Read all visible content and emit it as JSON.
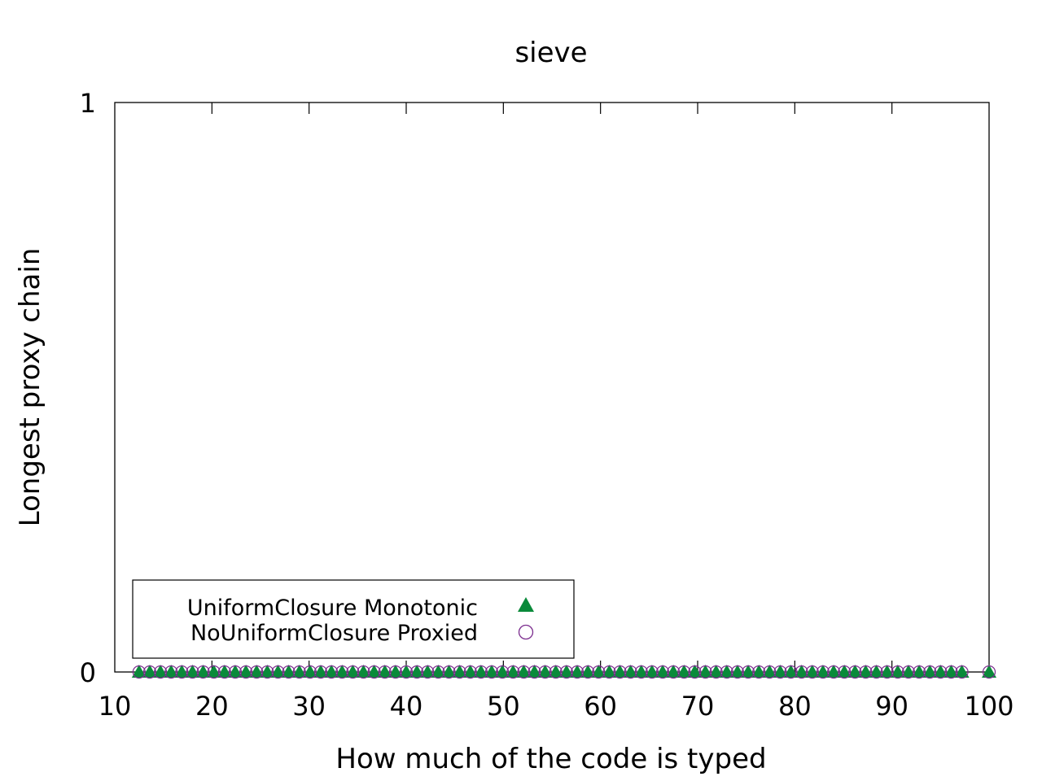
{
  "chart_data": {
    "type": "scatter",
    "title": "sieve",
    "xlabel": "How much of the code is typed",
    "ylabel": "Longest proxy chain",
    "xlim": [
      10,
      100
    ],
    "ylim": [
      0,
      1
    ],
    "x_ticks": [
      "10",
      "20",
      "30",
      "40",
      "50",
      "60",
      "70",
      "80",
      "90",
      "100"
    ],
    "y_ticks": [
      "0",
      "1"
    ],
    "grid": false,
    "legend_position": "bottom-left",
    "series": [
      {
        "name": "UniformClosure Monotonic",
        "marker": "filled-triangle",
        "color": "#0a8a3a",
        "x": [
          12.5,
          13.6,
          14.7,
          15.8,
          16.9,
          18.0,
          19.1,
          20.2,
          21.3,
          22.4,
          23.5,
          24.6,
          25.7,
          26.8,
          27.9,
          29.0,
          30.1,
          31.2,
          32.3,
          33.4,
          34.5,
          35.6,
          36.7,
          37.8,
          38.9,
          40.0,
          41.1,
          42.2,
          43.3,
          44.4,
          45.5,
          46.6,
          47.7,
          48.8,
          49.9,
          51.0,
          52.1,
          53.2,
          54.3,
          55.4,
          56.5,
          57.6,
          58.7,
          59.8,
          60.9,
          62.0,
          63.1,
          64.2,
          65.3,
          66.4,
          67.5,
          68.6,
          69.7,
          70.8,
          71.9,
          73.0,
          74.1,
          75.2,
          76.3,
          77.4,
          78.5,
          79.6,
          80.7,
          81.8,
          82.9,
          84.0,
          85.1,
          86.2,
          87.3,
          88.4,
          89.5,
          90.6,
          91.7,
          92.8,
          93.9,
          95.0,
          96.1,
          97.2,
          100.0
        ],
        "y": [
          0,
          0,
          0,
          0,
          0,
          0,
          0,
          0,
          0,
          0,
          0,
          0,
          0,
          0,
          0,
          0,
          0,
          0,
          0,
          0,
          0,
          0,
          0,
          0,
          0,
          0,
          0,
          0,
          0,
          0,
          0,
          0,
          0,
          0,
          0,
          0,
          0,
          0,
          0,
          0,
          0,
          0,
          0,
          0,
          0,
          0,
          0,
          0,
          0,
          0,
          0,
          0,
          0,
          0,
          0,
          0,
          0,
          0,
          0,
          0,
          0,
          0,
          0,
          0,
          0,
          0,
          0,
          0,
          0,
          0,
          0,
          0,
          0,
          0,
          0,
          0,
          0,
          0,
          0
        ]
      },
      {
        "name": "NoUniformClosure Proxied",
        "marker": "open-circle",
        "color": "#7b2d8e",
        "x": [
          12.5,
          13.6,
          14.7,
          15.8,
          16.9,
          18.0,
          19.1,
          20.2,
          21.3,
          22.4,
          23.5,
          24.6,
          25.7,
          26.8,
          27.9,
          29.0,
          30.1,
          31.2,
          32.3,
          33.4,
          34.5,
          35.6,
          36.7,
          37.8,
          38.9,
          40.0,
          41.1,
          42.2,
          43.3,
          44.4,
          45.5,
          46.6,
          47.7,
          48.8,
          49.9,
          51.0,
          52.1,
          53.2,
          54.3,
          55.4,
          56.5,
          57.6,
          58.7,
          59.8,
          60.9,
          62.0,
          63.1,
          64.2,
          65.3,
          66.4,
          67.5,
          68.6,
          69.7,
          70.8,
          71.9,
          73.0,
          74.1,
          75.2,
          76.3,
          77.4,
          78.5,
          79.6,
          80.7,
          81.8,
          82.9,
          84.0,
          85.1,
          86.2,
          87.3,
          88.4,
          89.5,
          90.6,
          91.7,
          92.8,
          93.9,
          95.0,
          96.1,
          97.2,
          100.0
        ],
        "y": [
          0,
          0,
          0,
          0,
          0,
          0,
          0,
          0,
          0,
          0,
          0,
          0,
          0,
          0,
          0,
          0,
          0,
          0,
          0,
          0,
          0,
          0,
          0,
          0,
          0,
          0,
          0,
          0,
          0,
          0,
          0,
          0,
          0,
          0,
          0,
          0,
          0,
          0,
          0,
          0,
          0,
          0,
          0,
          0,
          0,
          0,
          0,
          0,
          0,
          0,
          0,
          0,
          0,
          0,
          0,
          0,
          0,
          0,
          0,
          0,
          0,
          0,
          0,
          0,
          0,
          0,
          0,
          0,
          0,
          0,
          0,
          0,
          0,
          0,
          0,
          0,
          0,
          0,
          0
        ]
      }
    ]
  }
}
